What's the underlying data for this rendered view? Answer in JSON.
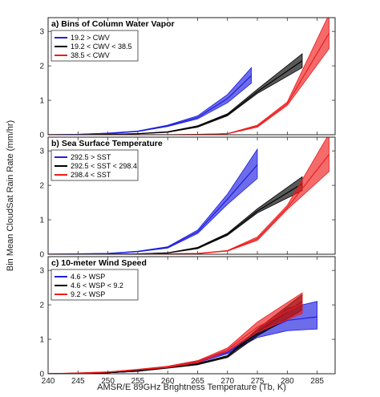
{
  "figure": {
    "xlabel": "AMSR/E 89GHz Brightness Temperature (Tb, K)",
    "ylabel": "Bin Mean CloudSat Rain Rate (mm/hr)",
    "colors": {
      "blue": "#1f1fe0",
      "black": "#000000",
      "red": "#ee1c1c"
    }
  },
  "chart_data": [
    {
      "type": "line",
      "title": "a) Bins of Column Water Vapor",
      "xlim": [
        240,
        288
      ],
      "ylim": [
        0,
        3.4
      ],
      "xticks": [
        240,
        245,
        250,
        255,
        260,
        265,
        270,
        275,
        280,
        285
      ],
      "yticks": [
        0,
        1,
        2,
        3
      ],
      "xtick_labels": [
        "",
        "",
        "",
        "",
        "",
        "",
        "",
        "",
        "",
        ""
      ],
      "ytick_labels": [
        "0",
        "1",
        "2",
        "3"
      ],
      "legend": {
        "placement": "top-left"
      },
      "series": [
        {
          "name": "19.2 > CWV",
          "color": "blue",
          "x": [
            240,
            245,
            250,
            255,
            260,
            265,
            270,
            274
          ],
          "y": [
            0,
            0.01,
            0.04,
            0.1,
            0.26,
            0.5,
            1.05,
            1.72
          ],
          "lower": [
            0,
            0.005,
            0.03,
            0.09,
            0.24,
            0.46,
            0.93,
            1.5
          ],
          "upper": [
            0,
            0.015,
            0.05,
            0.11,
            0.28,
            0.55,
            1.17,
            1.95
          ]
        },
        {
          "name": "19.2 < CWV < 38.5",
          "color": "black",
          "x": [
            240,
            245,
            250,
            255,
            260,
            265,
            270,
            275,
            282.5
          ],
          "y": [
            0,
            0.0,
            0.01,
            0.03,
            0.08,
            0.24,
            0.58,
            1.25,
            2.15
          ],
          "lower": [
            0,
            0.0,
            0.005,
            0.025,
            0.07,
            0.22,
            0.55,
            1.2,
            1.95
          ],
          "upper": [
            0,
            0.0,
            0.015,
            0.035,
            0.09,
            0.26,
            0.61,
            1.32,
            2.35
          ]
        },
        {
          "name": "38.5 < CWV",
          "color": "red",
          "x": [
            240,
            250,
            260,
            265,
            270,
            275,
            280,
            287
          ],
          "y": [
            0,
            0,
            0.0,
            0.01,
            0.03,
            0.25,
            0.9,
            2.95
          ],
          "lower": [
            0,
            0,
            0.0,
            0.008,
            0.025,
            0.22,
            0.85,
            2.5
          ],
          "upper": [
            0,
            0,
            0.0,
            0.012,
            0.035,
            0.28,
            0.95,
            3.5
          ]
        }
      ]
    },
    {
      "type": "line",
      "title": "b) Sea Surface Temperature",
      "xlim": [
        240,
        288
      ],
      "ylim": [
        0,
        3.4
      ],
      "xticks": [
        240,
        245,
        250,
        255,
        260,
        265,
        270,
        275,
        280,
        285
      ],
      "yticks": [
        0,
        1,
        2,
        3
      ],
      "xtick_labels": [
        "",
        "",
        "",
        "",
        "",
        "",
        "",
        "",
        "",
        ""
      ],
      "ytick_labels": [
        "0",
        "1",
        "2",
        "3"
      ],
      "legend": {
        "placement": "top-left"
      },
      "series": [
        {
          "name": "292.5 > SST",
          "color": "blue",
          "x": [
            240,
            245,
            250,
            255,
            260,
            265,
            270,
            275
          ],
          "y": [
            0,
            0.01,
            0.02,
            0.08,
            0.2,
            0.65,
            1.6,
            2.6
          ],
          "lower": [
            0,
            0.005,
            0.015,
            0.07,
            0.18,
            0.6,
            1.45,
            2.2
          ],
          "upper": [
            0,
            0.015,
            0.025,
            0.09,
            0.22,
            0.7,
            1.75,
            3.05
          ]
        },
        {
          "name": "292.5 < SST < 298.4",
          "color": "black",
          "x": [
            240,
            250,
            255,
            260,
            265,
            270,
            275,
            282.5
          ],
          "y": [
            0,
            0.0,
            0.01,
            0.04,
            0.18,
            0.58,
            1.25,
            2.05
          ],
          "lower": [
            0,
            0.0,
            0.008,
            0.035,
            0.16,
            0.55,
            1.2,
            1.85
          ],
          "upper": [
            0,
            0.0,
            0.012,
            0.045,
            0.2,
            0.61,
            1.32,
            2.25
          ]
        },
        {
          "name": "298.4 < SST",
          "color": "red",
          "x": [
            240,
            255,
            265,
            270,
            275,
            280,
            287
          ],
          "y": [
            0,
            0.0,
            0.02,
            0.1,
            0.45,
            1.35,
            2.9
          ],
          "lower": [
            0,
            0.0,
            0.015,
            0.09,
            0.4,
            1.3,
            2.4
          ],
          "upper": [
            0,
            0.0,
            0.025,
            0.11,
            0.5,
            1.42,
            3.5
          ]
        }
      ]
    },
    {
      "type": "line",
      "title": "c) 10-meter Wind Speed",
      "xlim": [
        240,
        288
      ],
      "ylim": [
        0,
        3.4
      ],
      "xticks": [
        240,
        245,
        250,
        255,
        260,
        265,
        270,
        275,
        280,
        285
      ],
      "yticks": [
        0,
        1,
        2,
        3
      ],
      "xtick_labels": [
        "240",
        "245",
        "250",
        "255",
        "260",
        "265",
        "270",
        "275",
        "280",
        "285"
      ],
      "ytick_labels": [
        "0",
        "1",
        "2",
        "3"
      ],
      "legend": {
        "placement": "top-left"
      },
      "series": [
        {
          "name": "4.6 > WSP",
          "color": "blue",
          "x": [
            240,
            245,
            250,
            255,
            260,
            265,
            270,
            275,
            280,
            285
          ],
          "y": [
            0,
            0.01,
            0.03,
            0.08,
            0.2,
            0.35,
            0.62,
            1.15,
            1.55,
            1.65
          ],
          "lower": [
            0,
            0.005,
            0.025,
            0.07,
            0.18,
            0.32,
            0.58,
            1.05,
            1.25,
            1.3
          ],
          "upper": [
            0,
            0.015,
            0.035,
            0.09,
            0.22,
            0.38,
            0.66,
            1.25,
            1.9,
            2.1
          ]
        },
        {
          "name": "4.6 < WSP < 9.2",
          "color": "black",
          "x": [
            240,
            245,
            250,
            255,
            260,
            265,
            270,
            275,
            282.5
          ],
          "y": [
            0,
            0.01,
            0.03,
            0.08,
            0.18,
            0.28,
            0.5,
            1.2,
            2.1
          ],
          "lower": [
            0,
            0.005,
            0.025,
            0.07,
            0.16,
            0.26,
            0.47,
            1.1,
            1.85
          ],
          "upper": [
            0,
            0.015,
            0.035,
            0.09,
            0.2,
            0.3,
            0.53,
            1.3,
            2.3
          ]
        },
        {
          "name": "9.2 < WSP",
          "color": "red",
          "x": [
            240,
            245,
            250,
            255,
            260,
            265,
            270,
            275,
            282.5
          ],
          "y": [
            0,
            0.02,
            0.05,
            0.12,
            0.2,
            0.35,
            0.7,
            1.35,
            2.05
          ],
          "lower": [
            0,
            0.015,
            0.045,
            0.11,
            0.18,
            0.32,
            0.65,
            1.2,
            1.75
          ],
          "upper": [
            0,
            0.025,
            0.055,
            0.13,
            0.22,
            0.38,
            0.75,
            1.5,
            2.35
          ]
        }
      ]
    }
  ]
}
